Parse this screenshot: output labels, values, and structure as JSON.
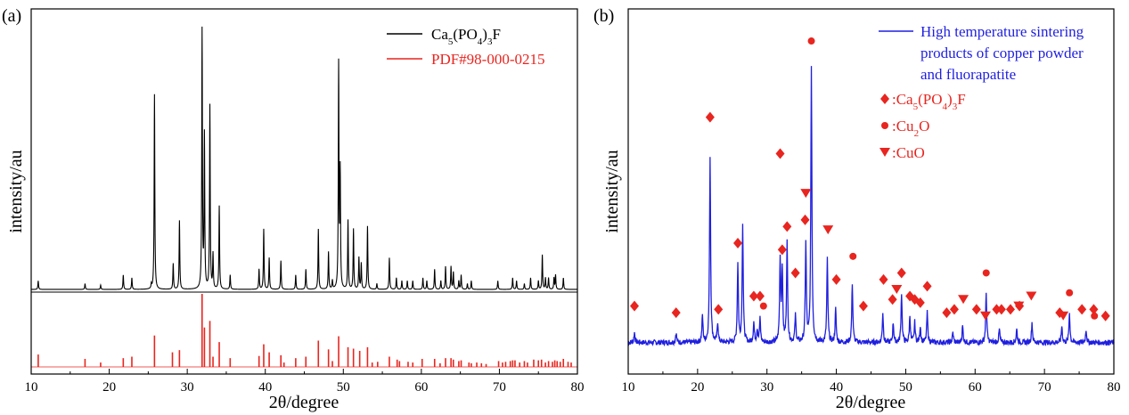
{
  "chart_data": [
    {
      "panel_label": "(a)",
      "type": "line",
      "title": "",
      "xlabel": "2θ/degree",
      "ylabel": "intensity/au",
      "xlim": [
        10,
        80
      ],
      "xticks": [
        10,
        20,
        30,
        40,
        50,
        60,
        70,
        80
      ],
      "yticks_shown": false,
      "legend": {
        "placement": "top-right",
        "entries": [
          {
            "label_html": "Ca<tspan baseline-shift=\"sub\" font-size=\"11\">5</tspan>(PO<tspan baseline-shift=\"sub\" font-size=\"11\">4</tspan>)<tspan baseline-shift=\"sub\" font-size=\"11\">3</tspan>F",
            "color": "#000000"
          },
          {
            "label_html": "PDF#98-000-0215",
            "color": "#e8251f"
          }
        ]
      },
      "series": [
        {
          "name": "Ca5(PO4)3F",
          "color": "#000000",
          "style": "line",
          "baseline": 3,
          "peaks": [
            [
              10.9,
              3
            ],
            [
              16.9,
              2
            ],
            [
              18.9,
              1.5
            ],
            [
              21.8,
              5
            ],
            [
              22.9,
              4
            ],
            [
              25.4,
              1.5
            ],
            [
              25.8,
              68
            ],
            [
              28.2,
              9
            ],
            [
              29.0,
              24
            ],
            [
              31.9,
              90
            ],
            [
              32.2,
              53
            ],
            [
              32.9,
              64
            ],
            [
              33.3,
              12
            ],
            [
              34.1,
              29
            ],
            [
              35.5,
              5
            ],
            [
              39.2,
              7
            ],
            [
              39.8,
              21
            ],
            [
              40.5,
              11
            ],
            [
              42.0,
              10
            ],
            [
              43.9,
              5
            ],
            [
              45.2,
              7
            ],
            [
              46.8,
              21
            ],
            [
              48.1,
              13
            ],
            [
              48.6,
              3
            ],
            [
              49.4,
              78
            ],
            [
              49.6,
              40
            ],
            [
              50.6,
              24
            ],
            [
              51.3,
              21
            ],
            [
              52.0,
              11
            ],
            [
              52.3,
              9
            ],
            [
              53.1,
              22
            ],
            [
              54.3,
              2
            ],
            [
              55.9,
              11
            ],
            [
              56.8,
              4
            ],
            [
              57.5,
              3
            ],
            [
              58.2,
              3
            ],
            [
              58.9,
              3
            ],
            [
              60.2,
              4
            ],
            [
              60.7,
              3
            ],
            [
              61.7,
              7
            ],
            [
              62.5,
              3
            ],
            [
              63.1,
              8
            ],
            [
              63.8,
              8
            ],
            [
              64.1,
              6
            ],
            [
              64.8,
              3
            ],
            [
              65.1,
              5
            ],
            [
              65.9,
              2
            ],
            [
              66.4,
              3
            ],
            [
              69.8,
              3
            ],
            [
              71.7,
              4
            ],
            [
              72.2,
              3
            ],
            [
              73.2,
              2
            ],
            [
              74.0,
              4
            ],
            [
              75.0,
              3
            ],
            [
              75.5,
              12
            ],
            [
              75.9,
              4
            ],
            [
              76.3,
              4
            ],
            [
              77.0,
              4
            ],
            [
              77.2,
              5
            ],
            [
              78.2,
              4
            ]
          ]
        },
        {
          "name": "PDF#98-000-0215",
          "color": "#e8251f",
          "style": "sticks",
          "ylim": [
            0,
            100
          ],
          "sticks": [
            [
              10.9,
              17
            ],
            [
              16.9,
              11
            ],
            [
              18.9,
              6
            ],
            [
              21.8,
              12
            ],
            [
              22.9,
              14
            ],
            [
              25.8,
              43
            ],
            [
              28.1,
              20
            ],
            [
              29.0,
              23
            ],
            [
              31.9,
              100
            ],
            [
              32.2,
              54
            ],
            [
              32.9,
              63
            ],
            [
              33.3,
              14
            ],
            [
              34.1,
              34
            ],
            [
              35.5,
              12
            ],
            [
              39.2,
              15
            ],
            [
              39.8,
              31
            ],
            [
              40.5,
              20
            ],
            [
              42.0,
              16
            ],
            [
              42.4,
              6
            ],
            [
              43.9,
              12
            ],
            [
              45.2,
              14
            ],
            [
              46.8,
              36
            ],
            [
              48.1,
              24
            ],
            [
              48.6,
              8
            ],
            [
              49.4,
              42
            ],
            [
              50.6,
              27
            ],
            [
              51.3,
              25
            ],
            [
              52.1,
              22
            ],
            [
              53.1,
              27
            ],
            [
              53.7,
              6
            ],
            [
              54.4,
              7
            ],
            [
              55.9,
              14
            ],
            [
              56.9,
              10
            ],
            [
              57.2,
              8
            ],
            [
              58.3,
              7
            ],
            [
              58.9,
              6
            ],
            [
              60.1,
              11
            ],
            [
              61.7,
              11
            ],
            [
              62.4,
              5
            ],
            [
              63.1,
              12
            ],
            [
              63.8,
              12
            ],
            [
              64.1,
              10
            ],
            [
              64.8,
              8
            ],
            [
              65.1,
              9
            ],
            [
              66.1,
              6
            ],
            [
              66.4,
              5
            ],
            [
              67.1,
              6
            ],
            [
              67.7,
              5
            ],
            [
              68.3,
              4
            ],
            [
              69.9,
              8
            ],
            [
              70.4,
              6
            ],
            [
              70.8,
              7
            ],
            [
              71.4,
              8
            ],
            [
              71.7,
              9
            ],
            [
              72.0,
              9
            ],
            [
              72.6,
              6
            ],
            [
              73.2,
              8
            ],
            [
              73.6,
              6
            ],
            [
              74.4,
              10
            ],
            [
              75.0,
              9
            ],
            [
              75.4,
              10
            ],
            [
              75.9,
              6
            ],
            [
              76.3,
              8
            ],
            [
              76.8,
              7
            ],
            [
              77.1,
              9
            ],
            [
              77.4,
              8
            ],
            [
              77.8,
              7
            ],
            [
              78.2,
              11
            ],
            [
              78.8,
              7
            ],
            [
              79.2,
              6
            ]
          ]
        }
      ]
    },
    {
      "panel_label": "(b)",
      "type": "line",
      "title": "",
      "xlabel": "2θ/degree",
      "ylabel": "intensity/au",
      "xlim": [
        10,
        80
      ],
      "xticks": [
        10,
        20,
        30,
        40,
        50,
        60,
        70,
        80
      ],
      "yticks_shown": false,
      "legend": {
        "placement": "top-right",
        "line_label_lines": [
          "High temperature sintering",
          "products  of copper powder",
          "and fluorapatite"
        ],
        "line_color": "#1f1fe0",
        "marker_entries": [
          {
            "marker": "diamond",
            "label_html": ":Ca<tspan baseline-shift=\"sub\" font-size=\"11\">5</tspan>(PO<tspan baseline-shift=\"sub\" font-size=\"11\">4</tspan>)<tspan baseline-shift=\"sub\" font-size=\"11\">3</tspan>F"
          },
          {
            "marker": "circle",
            "label_html": ":Cu<tspan baseline-shift=\"sub\" font-size=\"11\">2</tspan>O"
          },
          {
            "marker": "triangle-down",
            "label_html": ":CuO"
          }
        ],
        "marker_color": "#e8251f"
      },
      "series": [
        {
          "name": "High temperature sintering products of copper powder and fluorapatite",
          "color": "#1f1fe0",
          "style": "line",
          "baseline": 2,
          "noise": 0.8,
          "peaks": [
            [
              10.9,
              3
            ],
            [
              16.9,
              3
            ],
            [
              20.7,
              8
            ],
            [
              21.8,
              56
            ],
            [
              22.9,
              6
            ],
            [
              25.8,
              24
            ],
            [
              26.5,
              36
            ],
            [
              28.1,
              6
            ],
            [
              28.6,
              4
            ],
            [
              29.0,
              7
            ],
            [
              31.9,
              25
            ],
            [
              32.2,
              22
            ],
            [
              32.9,
              30
            ],
            [
              34.1,
              8
            ],
            [
              35.6,
              30
            ],
            [
              36.4,
              83
            ],
            [
              38.7,
              25
            ],
            [
              39.9,
              10
            ],
            [
              42.3,
              18
            ],
            [
              46.7,
              9
            ],
            [
              48.2,
              6
            ],
            [
              49.4,
              15
            ],
            [
              50.6,
              8
            ],
            [
              51.3,
              6
            ],
            [
              52.1,
              5
            ],
            [
              53.1,
              9
            ],
            [
              56.8,
              3
            ],
            [
              58.2,
              5
            ],
            [
              61.6,
              15
            ],
            [
              63.5,
              4
            ],
            [
              66.0,
              4
            ],
            [
              68.2,
              6
            ],
            [
              72.5,
              5
            ],
            [
              73.6,
              9
            ],
            [
              76.0,
              4
            ]
          ],
          "markers": [
            {
              "type": "diamond",
              "x": 10.9,
              "y": 13
            },
            {
              "type": "diamond",
              "x": 16.9,
              "y": 11
            },
            {
              "type": "diamond",
              "x": 21.8,
              "y": 70
            },
            {
              "type": "diamond",
              "x": 23.0,
              "y": 12
            },
            {
              "type": "diamond",
              "x": 25.8,
              "y": 32
            },
            {
              "type": "diamond",
              "x": 28.1,
              "y": 16
            },
            {
              "type": "diamond",
              "x": 29.0,
              "y": 16
            },
            {
              "type": "diamond",
              "x": 31.9,
              "y": 59
            },
            {
              "type": "diamond",
              "x": 32.2,
              "y": 30
            },
            {
              "type": "diamond",
              "x": 32.9,
              "y": 37
            },
            {
              "type": "diamond",
              "x": 34.1,
              "y": 23
            },
            {
              "type": "diamond",
              "x": 35.5,
              "y": 39
            },
            {
              "type": "diamond",
              "x": 40.0,
              "y": 21
            },
            {
              "type": "diamond",
              "x": 43.9,
              "y": 13
            },
            {
              "type": "diamond",
              "x": 46.8,
              "y": 21
            },
            {
              "type": "diamond",
              "x": 48.1,
              "y": 15
            },
            {
              "type": "diamond",
              "x": 49.4,
              "y": 23
            },
            {
              "type": "diamond",
              "x": 50.6,
              "y": 16
            },
            {
              "type": "diamond",
              "x": 51.3,
              "y": 15
            },
            {
              "type": "diamond",
              "x": 52.1,
              "y": 14
            },
            {
              "type": "diamond",
              "x": 53.1,
              "y": 19
            },
            {
              "type": "diamond",
              "x": 55.9,
              "y": 11
            },
            {
              "type": "diamond",
              "x": 57.0,
              "y": 12
            },
            {
              "type": "diamond",
              "x": 60.2,
              "y": 12
            },
            {
              "type": "diamond",
              "x": 63.1,
              "y": 12
            },
            {
              "type": "diamond",
              "x": 63.8,
              "y": 12
            },
            {
              "type": "diamond",
              "x": 65.1,
              "y": 12
            },
            {
              "type": "diamond",
              "x": 66.4,
              "y": 13
            },
            {
              "type": "diamond",
              "x": 72.2,
              "y": 11
            },
            {
              "type": "diamond",
              "x": 75.4,
              "y": 12
            },
            {
              "type": "diamond",
              "x": 77.1,
              "y": 12
            },
            {
              "type": "diamond",
              "x": 78.8,
              "y": 10
            },
            {
              "type": "circle",
              "x": 29.5,
              "y": 13
            },
            {
              "type": "circle",
              "x": 36.4,
              "y": 93
            },
            {
              "type": "circle",
              "x": 42.4,
              "y": 28
            },
            {
              "type": "circle",
              "x": 61.6,
              "y": 23
            },
            {
              "type": "circle",
              "x": 73.6,
              "y": 17
            },
            {
              "type": "circle",
              "x": 77.2,
              "y": 10
            },
            {
              "type": "triangle",
              "x": 35.6,
              "y": 47
            },
            {
              "type": "triangle",
              "x": 38.8,
              "y": 36
            },
            {
              "type": "triangle",
              "x": 48.7,
              "y": 18
            },
            {
              "type": "triangle",
              "x": 58.3,
              "y": 15
            },
            {
              "type": "triangle",
              "x": 61.5,
              "y": 10
            },
            {
              "type": "triangle",
              "x": 66.3,
              "y": 13
            },
            {
              "type": "triangle",
              "x": 68.1,
              "y": 16
            },
            {
              "type": "triangle",
              "x": 72.7,
              "y": 10
            }
          ]
        }
      ]
    }
  ]
}
